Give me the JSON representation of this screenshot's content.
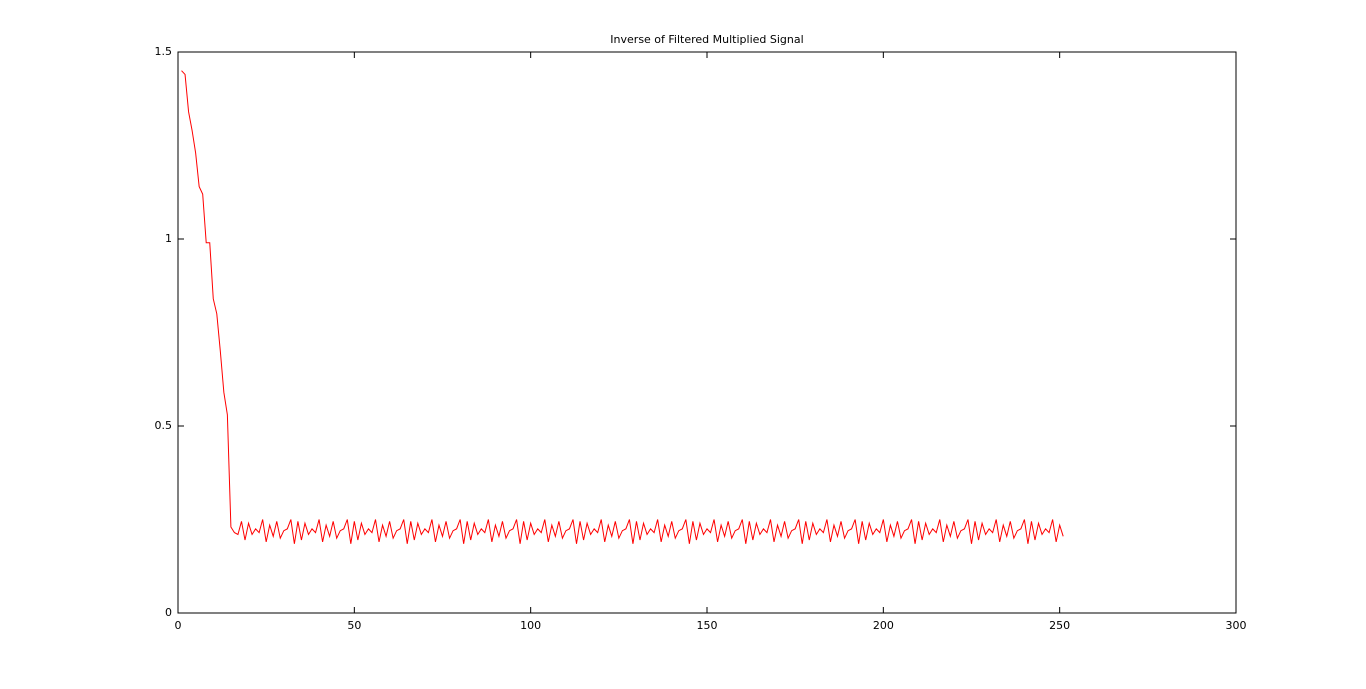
{
  "chart_data": {
    "type": "line",
    "title": "Inverse of Filtered Multiplied Signal",
    "x": [
      1,
      2,
      3,
      4,
      5,
      6,
      7,
      8,
      9,
      10,
      11,
      12,
      13,
      14,
      15,
      16,
      17,
      18,
      19,
      20,
      21,
      22,
      23,
      24,
      25,
      26,
      27,
      28,
      29,
      30,
      31,
      32,
      33,
      34,
      35,
      36,
      37,
      38,
      39,
      40,
      41,
      42,
      43,
      44,
      45,
      46,
      47,
      48,
      49,
      50,
      51,
      52,
      53,
      54,
      55,
      56,
      57,
      58,
      59,
      60,
      61,
      62,
      63,
      64,
      65,
      66,
      67,
      68,
      69,
      70,
      71,
      72,
      73,
      74,
      75,
      76,
      77,
      78,
      79,
      80,
      81,
      82,
      83,
      84,
      85,
      86,
      87,
      88,
      89,
      90,
      91,
      92,
      93,
      94,
      95,
      96,
      97,
      98,
      99,
      100,
      101,
      102,
      103,
      104,
      105,
      106,
      107,
      108,
      109,
      110,
      111,
      112,
      113,
      114,
      115,
      116,
      117,
      118,
      119,
      120,
      121,
      122,
      123,
      124,
      125,
      126,
      127,
      128,
      129,
      130,
      131,
      132,
      133,
      134,
      135,
      136,
      137,
      138,
      139,
      140,
      141,
      142,
      143,
      144,
      145,
      146,
      147,
      148,
      149,
      150,
      151,
      152,
      153,
      154,
      155,
      156,
      157,
      158,
      159,
      160,
      161,
      162,
      163,
      164,
      165,
      166,
      167,
      168,
      169,
      170,
      171,
      172,
      173,
      174,
      175,
      176,
      177,
      178,
      179,
      180,
      181,
      182,
      183,
      184,
      185,
      186,
      187,
      188,
      189,
      190,
      191,
      192,
      193,
      194,
      195,
      196,
      197,
      198,
      199,
      200,
      201,
      202,
      203,
      204,
      205,
      206,
      207,
      208,
      209,
      210,
      211,
      212,
      213,
      214,
      215,
      216,
      217,
      218,
      219,
      220,
      221,
      222,
      223,
      224,
      225,
      226,
      227,
      228,
      229,
      230,
      231,
      232,
      233,
      234,
      235,
      236,
      237,
      238,
      239,
      240,
      241,
      242,
      243,
      244,
      245,
      246,
      247,
      248,
      249,
      250,
      251
    ],
    "values": [
      1.45,
      1.44,
      1.34,
      1.29,
      1.23,
      1.14,
      1.12,
      0.99,
      0.99,
      0.84,
      0.8,
      0.7,
      0.59,
      0.53,
      0.23,
      0.215,
      0.21,
      0.245,
      0.195,
      0.24,
      0.21,
      0.225,
      0.215,
      0.25,
      0.19,
      0.235,
      0.205,
      0.245,
      0.2,
      0.22,
      0.225,
      0.25,
      0.185,
      0.245,
      0.195,
      0.24,
      0.21,
      0.225,
      0.215,
      0.25,
      0.19,
      0.235,
      0.205,
      0.245,
      0.2,
      0.22,
      0.225,
      0.25,
      0.185,
      0.245,
      0.195,
      0.24,
      0.21,
      0.225,
      0.215,
      0.25,
      0.19,
      0.235,
      0.205,
      0.245,
      0.2,
      0.22,
      0.225,
      0.25,
      0.185,
      0.245,
      0.195,
      0.24,
      0.21,
      0.225,
      0.215,
      0.25,
      0.19,
      0.235,
      0.205,
      0.245,
      0.2,
      0.22,
      0.225,
      0.25,
      0.185,
      0.245,
      0.195,
      0.24,
      0.21,
      0.225,
      0.215,
      0.25,
      0.19,
      0.235,
      0.205,
      0.245,
      0.2,
      0.22,
      0.225,
      0.25,
      0.185,
      0.245,
      0.195,
      0.24,
      0.21,
      0.225,
      0.215,
      0.25,
      0.19,
      0.235,
      0.205,
      0.245,
      0.2,
      0.22,
      0.225,
      0.25,
      0.185,
      0.245,
      0.195,
      0.24,
      0.21,
      0.225,
      0.215,
      0.25,
      0.19,
      0.235,
      0.205,
      0.245,
      0.2,
      0.22,
      0.225,
      0.25,
      0.185,
      0.245,
      0.195,
      0.24,
      0.21,
      0.225,
      0.215,
      0.25,
      0.19,
      0.235,
      0.205,
      0.245,
      0.2,
      0.22,
      0.225,
      0.25,
      0.185,
      0.245,
      0.195,
      0.24,
      0.21,
      0.225,
      0.215,
      0.25,
      0.19,
      0.235,
      0.205,
      0.245,
      0.2,
      0.22,
      0.225,
      0.25,
      0.185,
      0.245,
      0.195,
      0.24,
      0.21,
      0.225,
      0.215,
      0.25,
      0.19,
      0.235,
      0.205,
      0.245,
      0.2,
      0.22,
      0.225,
      0.25,
      0.185,
      0.245,
      0.195,
      0.24,
      0.21,
      0.225,
      0.215,
      0.25,
      0.19,
      0.235,
      0.205,
      0.245,
      0.2,
      0.22,
      0.225,
      0.25,
      0.185,
      0.245,
      0.195,
      0.24,
      0.21,
      0.225,
      0.215,
      0.25,
      0.19,
      0.235,
      0.205,
      0.245,
      0.2,
      0.22,
      0.225,
      0.25,
      0.185,
      0.245,
      0.195,
      0.24,
      0.21,
      0.225,
      0.215,
      0.25,
      0.19,
      0.235,
      0.205,
      0.245,
      0.2,
      0.22,
      0.225,
      0.25,
      0.185,
      0.245,
      0.195,
      0.24,
      0.21,
      0.225,
      0.215,
      0.25,
      0.19,
      0.235,
      0.205,
      0.245,
      0.2,
      0.22,
      0.225,
      0.25,
      0.185,
      0.245,
      0.195,
      0.24,
      0.21,
      0.225,
      0.215,
      0.25,
      0.19,
      0.235,
      0.205
    ],
    "color": "#ff0000",
    "xlim": [
      0,
      300
    ],
    "xticks": [
      0,
      50,
      100,
      150,
      200,
      250,
      300
    ],
    "ylim": [
      0,
      1.5
    ],
    "yticks": [
      0,
      0.5,
      1,
      1.5
    ],
    "grid": false
  }
}
